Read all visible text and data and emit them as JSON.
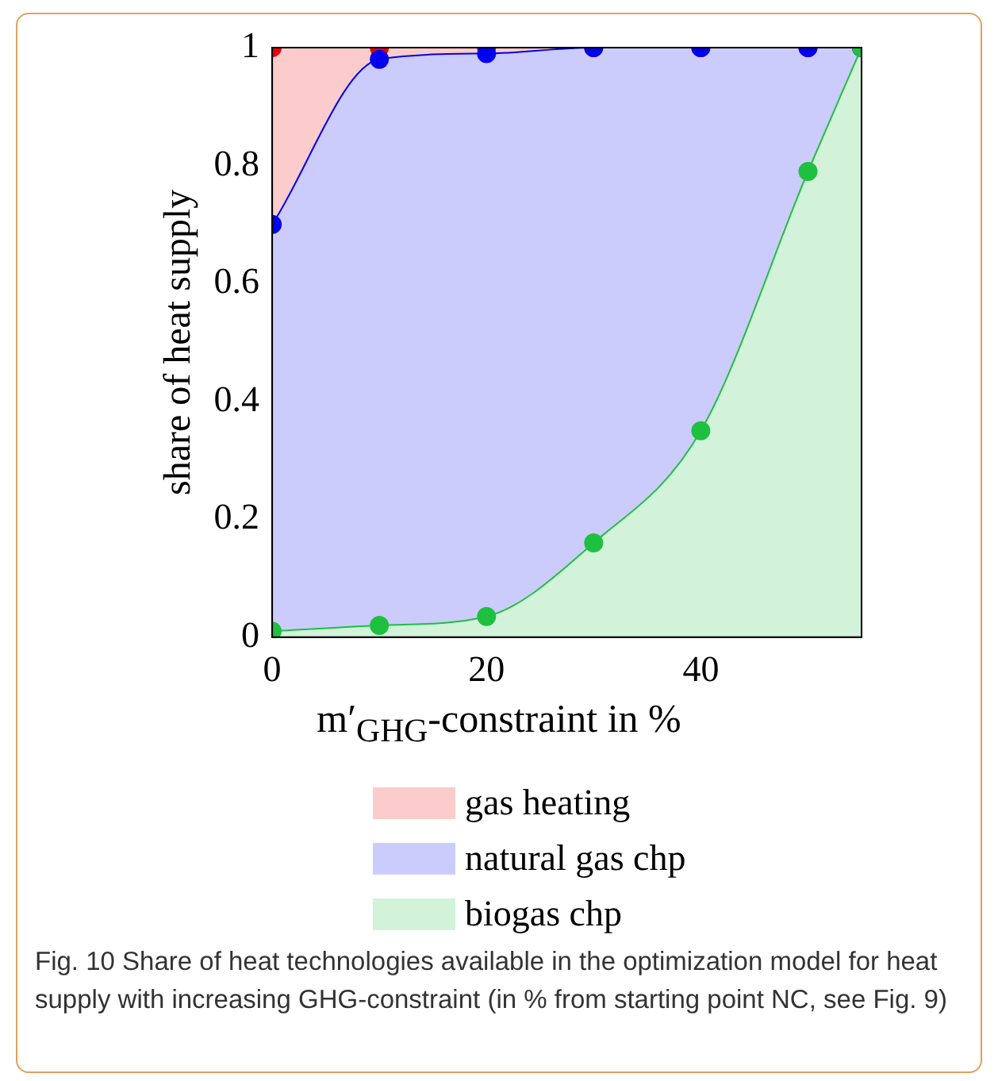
{
  "chart_data": {
    "type": "area",
    "stacked": true,
    "xlabel": "m′$_{GHG}$-constraint in %",
    "ylabel": "share of heat supply",
    "x": [
      0,
      10,
      20,
      30,
      40,
      50,
      55
    ],
    "series": [
      {
        "name": "biogas chp",
        "color": "#1ec040",
        "values": [
          0.01,
          0.02,
          0.035,
          0.16,
          0.35,
          0.79,
          1
        ]
      },
      {
        "name": "natural gas chp",
        "color": "#0000f0",
        "values": [
          0.69,
          0.96,
          0.955,
          0.84,
          0.65,
          0.21,
          0
        ]
      },
      {
        "name": "gas heating",
        "color": "#f00000",
        "values": [
          0.3,
          0.02,
          0.01,
          0,
          0,
          0,
          0
        ]
      }
    ],
    "xlim": [
      0,
      55
    ],
    "xticks": [
      0,
      20,
      40
    ],
    "ylim": [
      0,
      1
    ],
    "yticks": [
      0,
      0.2,
      0.4,
      0.6,
      0.8,
      1
    ],
    "grid": false,
    "legend": "bottom",
    "marker": "circle",
    "line_style": "solid",
    "annotations": [
      "Fig. 10 Share of heat technologies available in the optimization model for heat supply with increasing GHG-constraint (in % from starting point NC, see Fig. 9)"
    ]
  }
}
